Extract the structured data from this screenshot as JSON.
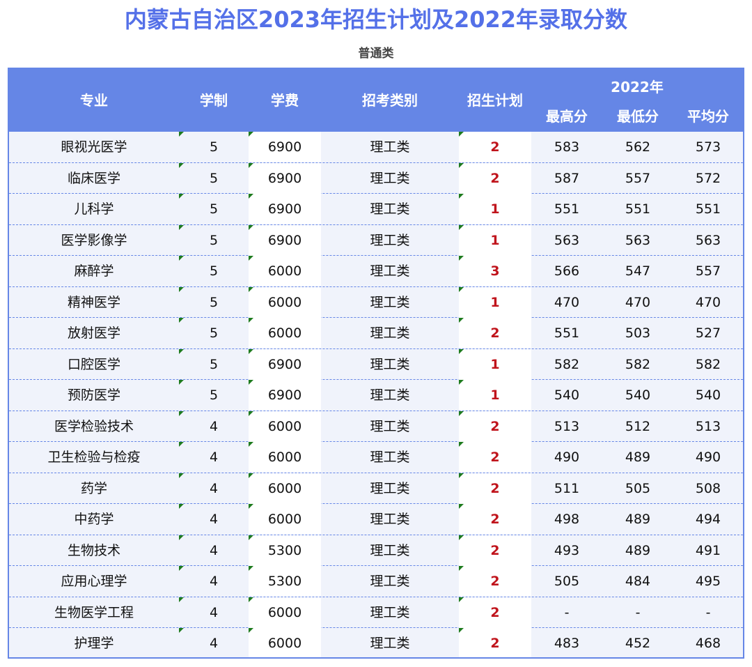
{
  "title": "内蒙古自治区2023年招生计划及2022年录取分数",
  "subtitle": "普通类",
  "header": {
    "major": "专业",
    "years": "学制",
    "tuition": "学费",
    "category": "招考类别",
    "plan": "招生计划",
    "year_group": "2022年",
    "max": "最高分",
    "min": "最低分",
    "avg": "平均分"
  },
  "rows": [
    {
      "major": "眼视光医学",
      "years": "5",
      "tuition": "6900",
      "category": "理工类",
      "plan": "2",
      "max": "583",
      "min": "562",
      "avg": "573"
    },
    {
      "major": "临床医学",
      "years": "5",
      "tuition": "6900",
      "category": "理工类",
      "plan": "2",
      "max": "587",
      "min": "557",
      "avg": "572"
    },
    {
      "major": "儿科学",
      "years": "5",
      "tuition": "6900",
      "category": "理工类",
      "plan": "1",
      "max": "551",
      "min": "551",
      "avg": "551"
    },
    {
      "major": "医学影像学",
      "years": "5",
      "tuition": "6900",
      "category": "理工类",
      "plan": "1",
      "max": "563",
      "min": "563",
      "avg": "563"
    },
    {
      "major": "麻醉学",
      "years": "5",
      "tuition": "6000",
      "category": "理工类",
      "plan": "3",
      "max": "566",
      "min": "547",
      "avg": "557"
    },
    {
      "major": "精神医学",
      "years": "5",
      "tuition": "6000",
      "category": "理工类",
      "plan": "1",
      "max": "470",
      "min": "470",
      "avg": "470"
    },
    {
      "major": "放射医学",
      "years": "5",
      "tuition": "6000",
      "category": "理工类",
      "plan": "2",
      "max": "551",
      "min": "503",
      "avg": "527"
    },
    {
      "major": "口腔医学",
      "years": "5",
      "tuition": "6900",
      "category": "理工类",
      "plan": "1",
      "max": "582",
      "min": "582",
      "avg": "582"
    },
    {
      "major": "预防医学",
      "years": "5",
      "tuition": "6900",
      "category": "理工类",
      "plan": "1",
      "max": "540",
      "min": "540",
      "avg": "540"
    },
    {
      "major": "医学检验技术",
      "years": "4",
      "tuition": "6000",
      "category": "理工类",
      "plan": "2",
      "max": "513",
      "min": "512",
      "avg": "513"
    },
    {
      "major": "卫生检验与检疫",
      "years": "4",
      "tuition": "6000",
      "category": "理工类",
      "plan": "2",
      "max": "490",
      "min": "489",
      "avg": "490"
    },
    {
      "major": "药学",
      "years": "4",
      "tuition": "6000",
      "category": "理工类",
      "plan": "2",
      "max": "511",
      "min": "505",
      "avg": "508"
    },
    {
      "major": "中药学",
      "years": "4",
      "tuition": "6000",
      "category": "理工类",
      "plan": "2",
      "max": "498",
      "min": "489",
      "avg": "494"
    },
    {
      "major": "生物技术",
      "years": "4",
      "tuition": "5300",
      "category": "理工类",
      "plan": "2",
      "max": "493",
      "min": "489",
      "avg": "491"
    },
    {
      "major": "应用心理学",
      "years": "4",
      "tuition": "5300",
      "category": "理工类",
      "plan": "2",
      "max": "505",
      "min": "484",
      "avg": "495"
    },
    {
      "major": "生物医学工程",
      "years": "4",
      "tuition": "6000",
      "category": "理工类",
      "plan": "2",
      "max": "-",
      "min": "-",
      "avg": "-"
    },
    {
      "major": "护理学",
      "years": "4",
      "tuition": "6000",
      "category": "理工类",
      "plan": "2",
      "max": "483",
      "min": "452",
      "avg": "468"
    }
  ]
}
